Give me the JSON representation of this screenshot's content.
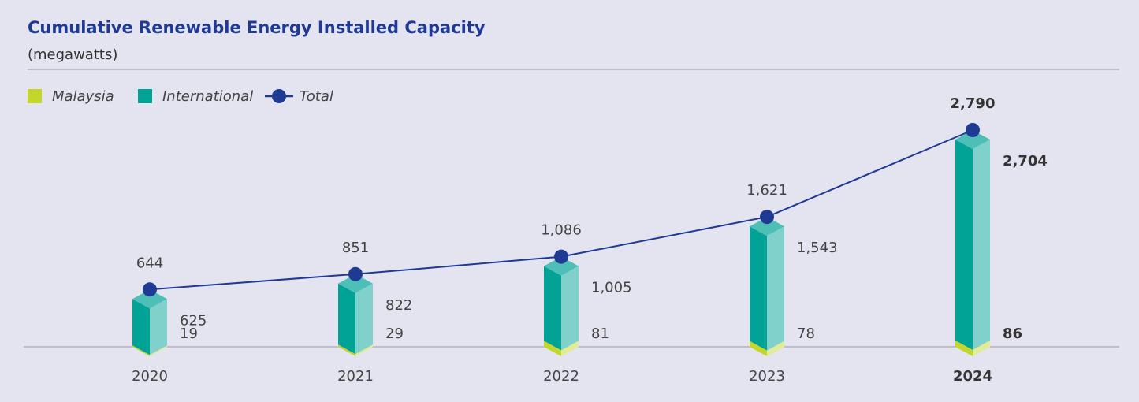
{
  "chart_data": {
    "type": "bar",
    "title": "Cumulative Renewable Energy Installed Capacity",
    "subtitle": "(megawatts)",
    "categories": [
      "2020",
      "2021",
      "2022",
      "2023",
      "2024"
    ],
    "series": [
      {
        "name": "Malaysia",
        "color": "#c5d62b",
        "values": [
          19,
          29,
          81,
          78,
          86
        ]
      },
      {
        "name": "International",
        "color": "#00a396",
        "values": [
          625,
          822,
          1005,
          1543,
          2704
        ],
        "value_labels": [
          "625",
          "822",
          "1,005",
          "1,543",
          "2,704"
        ]
      },
      {
        "name": "Total",
        "type": "line",
        "color": "#1f3a93",
        "values": [
          644,
          851,
          1086,
          1621,
          2790
        ],
        "value_labels": [
          "644",
          "851",
          "1,086",
          "1,621",
          "2,790"
        ]
      }
    ]
  }
}
